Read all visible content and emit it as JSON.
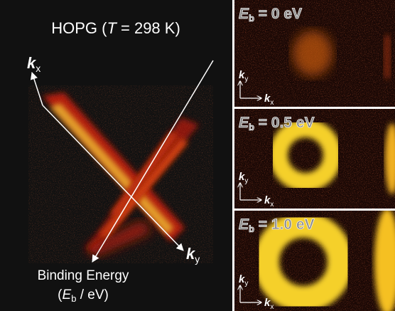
{
  "main_panel": {
    "title": {
      "before": "HOPG (",
      "variable": "T",
      "after": " = 298 K)"
    },
    "axis_kx": {
      "symbol": "k",
      "subscript": "x"
    },
    "axis_ky": {
      "symbol": "k",
      "subscript": "y"
    },
    "energy_label": {
      "line1": "Binding Energy",
      "open": "(",
      "symbol": "E",
      "subscript": "b",
      "unit": " / eV)"
    }
  },
  "panels": [
    {
      "label": {
        "symbol": "E",
        "subscript": "b",
        "value": " = 0 eV"
      },
      "axis_ky": {
        "symbol": "k",
        "subscript": "y"
      },
      "axis_kx": {
        "symbol": "k",
        "subscript": "x"
      }
    },
    {
      "label": {
        "symbol": "E",
        "subscript": "b",
        "value": " = 0.5 eV"
      },
      "axis_ky": {
        "symbol": "k",
        "subscript": "y"
      },
      "axis_kx": {
        "symbol": "k",
        "subscript": "x"
      }
    },
    {
      "label": {
        "symbol": "E",
        "subscript": "b",
        "value": " = 1.0 eV"
      },
      "axis_ky": {
        "symbol": "k",
        "subscript": "y"
      },
      "axis_kx": {
        "symbol": "k",
        "subscript": "x"
      }
    }
  ]
}
